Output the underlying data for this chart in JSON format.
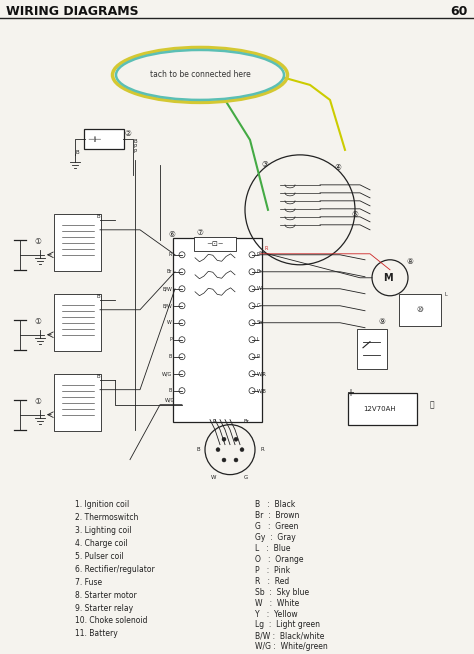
{
  "title": "WIRING DIAGRAMS",
  "page_number": "60",
  "background_color": "#f5f3ee",
  "title_color": "#111111",
  "line_color": "#222222",
  "annotation_oval_text": "tach to be connected here",
  "annotation_oval_color_outer": "#d4c832",
  "annotation_oval_color_inner": "#5bbfb5",
  "components_left": [
    "1. Ignition coil",
    "2. Thermoswitch",
    "3. Lighting coil",
    "4. Charge coil",
    "5. Pulser coil",
    "6. Rectifier/regulator",
    "7. Fuse",
    "8. Starter motor",
    "9. Starter relay",
    "10. Choke solenoid",
    "11. Battery"
  ],
  "color_codes_right": [
    "B   :  Black",
    "Br  :  Brown",
    "G   :  Green",
    "Gy  :  Gray",
    "L   :  Blue",
    "O   :  Orange",
    "P   :  Pink",
    "R   :  Red",
    "Sb  :  Sky blue",
    "W   :  White",
    "Y   :  Yellow",
    "Lg  :  Light green",
    "B/W :  Black/white",
    "W/G :  White/green"
  ],
  "diagram_bg": "#ffffff",
  "wire_colors": {
    "R": "#cc0000",
    "B": "#111111",
    "G": "#22aa22",
    "Y": "#ddcc00",
    "W": "#eeeeee",
    "Br": "#884400",
    "L": "#2255cc",
    "Sb": "#55aadd"
  }
}
